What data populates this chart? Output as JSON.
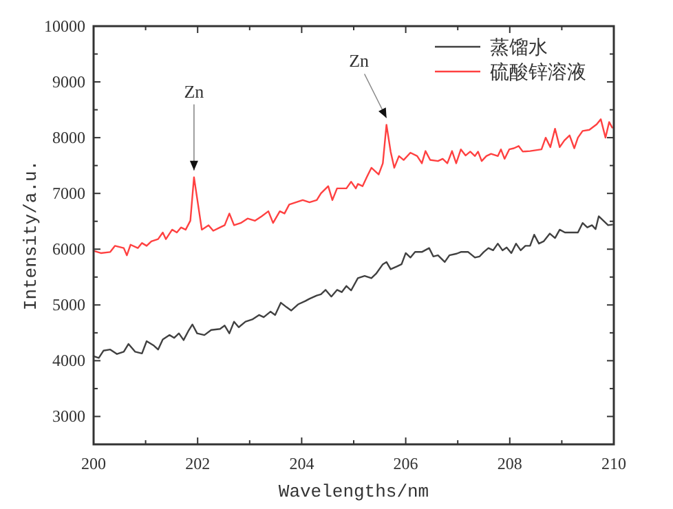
{
  "chart_data": {
    "type": "line",
    "xlabel": "Wavelengths/nm",
    "ylabel": "Intensity/a.u.",
    "xlim": [
      200,
      210
    ],
    "ylim": [
      2500,
      10000
    ],
    "xticks": [
      200,
      {
        "value": 201,
        "label": null
      },
      202,
      {
        "value": 203,
        "label": null
      },
      204,
      {
        "value": 205,
        "label": null
      },
      206,
      {
        "value": 207,
        "label": null
      },
      208,
      {
        "value": 209,
        "label": null
      },
      210
    ],
    "yticks": [
      3000,
      {
        "value": 3500,
        "label": null
      },
      4000,
      {
        "value": 4500,
        "label": null
      },
      5000,
      {
        "value": 5500,
        "label": null
      },
      6000,
      {
        "value": 6500,
        "label": null
      },
      7000,
      {
        "value": 7500,
        "label": null
      },
      8000,
      {
        "value": 8500,
        "label": null
      },
      9000,
      {
        "value": 9500,
        "label": null
      },
      10000
    ],
    "grid": false,
    "legend": "top right",
    "marker": "none",
    "line_style": "solid",
    "annotations": [
      {
        "text": "Zn",
        "x": 201.93,
        "y": 7290
      },
      {
        "text": "Zn",
        "x": 205.63,
        "y": 8230
      }
    ],
    "series": [
      {
        "name": "蒸馏水",
        "color": "#404040",
        "x": [
          200.0,
          200.1,
          200.19,
          200.32,
          200.45,
          200.58,
          200.67,
          200.8,
          200.93,
          201.02,
          201.16,
          201.24,
          201.33,
          201.46,
          201.55,
          201.64,
          201.73,
          201.82,
          201.9,
          201.99,
          202.13,
          202.26,
          202.43,
          202.52,
          202.61,
          202.7,
          202.79,
          202.92,
          203.05,
          203.18,
          203.27,
          203.4,
          203.49,
          203.6,
          203.71,
          203.8,
          203.93,
          204.07,
          204.15,
          204.29,
          204.37,
          204.46,
          204.57,
          204.68,
          204.77,
          204.86,
          204.95,
          205.08,
          205.21,
          205.34,
          205.43,
          205.56,
          205.63,
          205.71,
          205.83,
          205.92,
          206.0,
          206.09,
          206.18,
          206.31,
          206.45,
          206.53,
          206.62,
          206.75,
          206.84,
          206.98,
          207.06,
          207.2,
          207.33,
          207.42,
          207.5,
          207.59,
          207.68,
          207.77,
          207.86,
          207.94,
          208.03,
          208.12,
          208.21,
          208.3,
          208.39,
          208.47,
          208.56,
          208.65,
          208.77,
          208.87,
          208.96,
          209.06,
          209.18,
          209.31,
          209.4,
          209.49,
          209.58,
          209.65,
          209.71,
          209.8,
          209.89,
          209.97
        ],
        "values": [
          4080,
          4050,
          4180,
          4200,
          4120,
          4160,
          4300,
          4160,
          4130,
          4350,
          4270,
          4200,
          4380,
          4460,
          4410,
          4490,
          4370,
          4530,
          4650,
          4490,
          4460,
          4550,
          4570,
          4630,
          4490,
          4700,
          4600,
          4700,
          4740,
          4820,
          4780,
          4880,
          4820,
          5040,
          4960,
          4900,
          5010,
          5070,
          5110,
          5170,
          5190,
          5270,
          5150,
          5270,
          5230,
          5340,
          5260,
          5480,
          5520,
          5480,
          5560,
          5730,
          5770,
          5640,
          5690,
          5730,
          5930,
          5850,
          5950,
          5950,
          6020,
          5870,
          5890,
          5770,
          5890,
          5920,
          5950,
          5950,
          5850,
          5870,
          5950,
          6020,
          5980,
          6100,
          5980,
          6030,
          5930,
          6100,
          5980,
          6060,
          6060,
          6260,
          6100,
          6140,
          6280,
          6200,
          6350,
          6300,
          6300,
          6300,
          6470,
          6390,
          6430,
          6360,
          6590,
          6510,
          6430,
          6440
        ]
      },
      {
        "name": "硫酸锌溶液",
        "color": "#ff4040",
        "x": [
          200.0,
          200.14,
          200.32,
          200.41,
          200.58,
          200.64,
          200.71,
          200.85,
          200.93,
          201.02,
          201.11,
          201.24,
          201.33,
          201.39,
          201.51,
          201.6,
          201.68,
          201.77,
          201.86,
          201.93,
          202.08,
          202.21,
          202.3,
          202.43,
          202.52,
          202.61,
          202.7,
          202.83,
          202.96,
          203.1,
          203.23,
          203.36,
          203.45,
          203.58,
          203.67,
          203.76,
          203.89,
          204.02,
          204.15,
          204.29,
          204.37,
          204.51,
          204.59,
          204.68,
          204.86,
          204.95,
          205.04,
          205.08,
          205.17,
          205.25,
          205.34,
          205.48,
          205.56,
          205.63,
          205.71,
          205.78,
          205.87,
          205.96,
          206.09,
          206.22,
          206.31,
          206.38,
          206.47,
          206.62,
          206.71,
          206.8,
          206.89,
          206.97,
          207.06,
          207.15,
          207.24,
          207.33,
          207.39,
          207.46,
          207.55,
          207.64,
          207.77,
          207.83,
          207.9,
          207.99,
          208.08,
          208.17,
          208.25,
          208.39,
          208.61,
          208.69,
          208.78,
          208.87,
          208.96,
          209.05,
          209.15,
          209.24,
          209.31,
          209.4,
          209.53,
          209.67,
          209.75,
          209.84,
          209.91,
          209.97
        ],
        "values": [
          5970,
          5930,
          5950,
          6060,
          6020,
          5890,
          6080,
          6020,
          6110,
          6060,
          6140,
          6180,
          6300,
          6180,
          6350,
          6300,
          6390,
          6350,
          6510,
          7290,
          6350,
          6430,
          6330,
          6390,
          6430,
          6640,
          6430,
          6470,
          6550,
          6510,
          6590,
          6680,
          6470,
          6680,
          6640,
          6800,
          6840,
          6880,
          6840,
          6880,
          7000,
          7130,
          6880,
          7090,
          7090,
          7210,
          7090,
          7170,
          7130,
          7290,
          7460,
          7340,
          7540,
          8230,
          7750,
          7460,
          7670,
          7600,
          7730,
          7670,
          7540,
          7760,
          7600,
          7580,
          7620,
          7540,
          7760,
          7540,
          7790,
          7680,
          7750,
          7670,
          7750,
          7580,
          7670,
          7710,
          7670,
          7790,
          7620,
          7790,
          7810,
          7850,
          7750,
          7760,
          7790,
          8000,
          7830,
          8160,
          7830,
          7950,
          8040,
          7810,
          8000,
          8120,
          8140,
          8240,
          8330,
          8000,
          8280,
          8180
        ]
      }
    ]
  }
}
